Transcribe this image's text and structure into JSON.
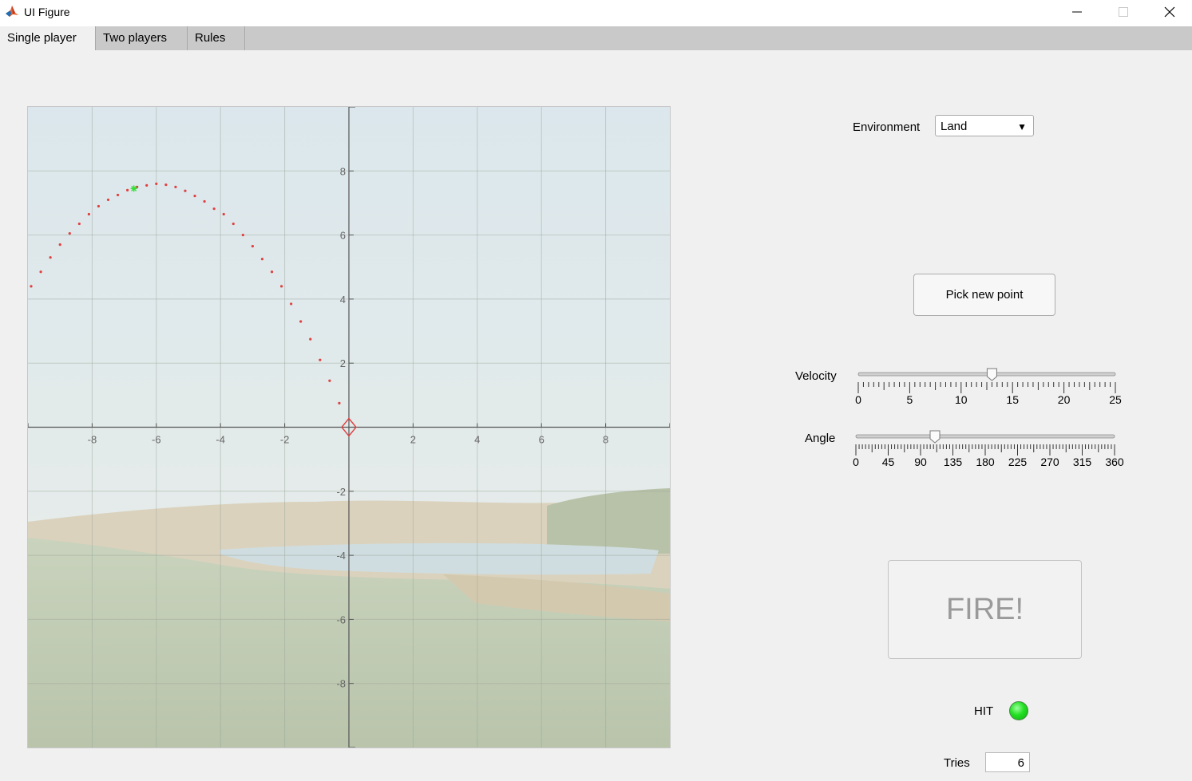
{
  "window": {
    "title": "UI Figure"
  },
  "tabs": [
    {
      "label": "Single player",
      "active": true
    },
    {
      "label": "Two players",
      "active": false
    },
    {
      "label": "Rules",
      "active": false
    }
  ],
  "environment": {
    "label": "Environment",
    "selected": "Land"
  },
  "pick_button": {
    "label": "Pick new point"
  },
  "velocity": {
    "label": "Velocity",
    "min": 0,
    "max": 25,
    "value": 13,
    "ticks": [
      "0",
      "5",
      "10",
      "15",
      "20",
      "25"
    ]
  },
  "angle": {
    "label": "Angle",
    "min": 0,
    "max": 360,
    "value": 110,
    "ticks": [
      "0",
      "45",
      "90",
      "135",
      "180",
      "225",
      "270",
      "315",
      "360"
    ]
  },
  "fire_button": {
    "label": "FIRE!"
  },
  "hit": {
    "label": "HIT",
    "color": "#22e022"
  },
  "tries": {
    "label": "Tries",
    "value": "6"
  },
  "chart_data": {
    "type": "scatter",
    "xlim": [
      -10,
      10
    ],
    "ylim": [
      -10,
      10
    ],
    "grid": true,
    "xticks": [
      "-8",
      "-6",
      "-4",
      "-2",
      "2",
      "4",
      "6",
      "8"
    ],
    "yticks": [
      "8",
      "6",
      "4",
      "2",
      "-2",
      "-4",
      "-6",
      "-8"
    ],
    "trajectory": {
      "color": "#e04040",
      "x": [
        -9.9,
        -9.6,
        -9.3,
        -9.0,
        -8.7,
        -8.4,
        -8.1,
        -7.8,
        -7.5,
        -7.2,
        -6.9,
        -6.6,
        -6.3,
        -6.0,
        -5.7,
        -5.4,
        -5.1,
        -4.8,
        -4.5,
        -4.2,
        -3.9,
        -3.6,
        -3.3,
        -3.0,
        -2.7,
        -2.4,
        -2.1,
        -1.8,
        -1.5,
        -1.2,
        -0.9,
        -0.6,
        -0.3
      ],
      "y": [
        4.4,
        4.85,
        5.3,
        5.7,
        6.05,
        6.35,
        6.65,
        6.9,
        7.1,
        7.25,
        7.4,
        7.5,
        7.55,
        7.6,
        7.57,
        7.5,
        7.38,
        7.22,
        7.05,
        6.82,
        6.65,
        6.35,
        6.0,
        5.65,
        5.25,
        4.85,
        4.4,
        3.85,
        3.3,
        2.75,
        2.1,
        1.45,
        0.75
      ]
    },
    "target": {
      "x": -6.7,
      "y": 7.45,
      "color": "#33e033"
    },
    "launcher": {
      "x": 0,
      "y": 0,
      "color": "#e04040"
    }
  }
}
